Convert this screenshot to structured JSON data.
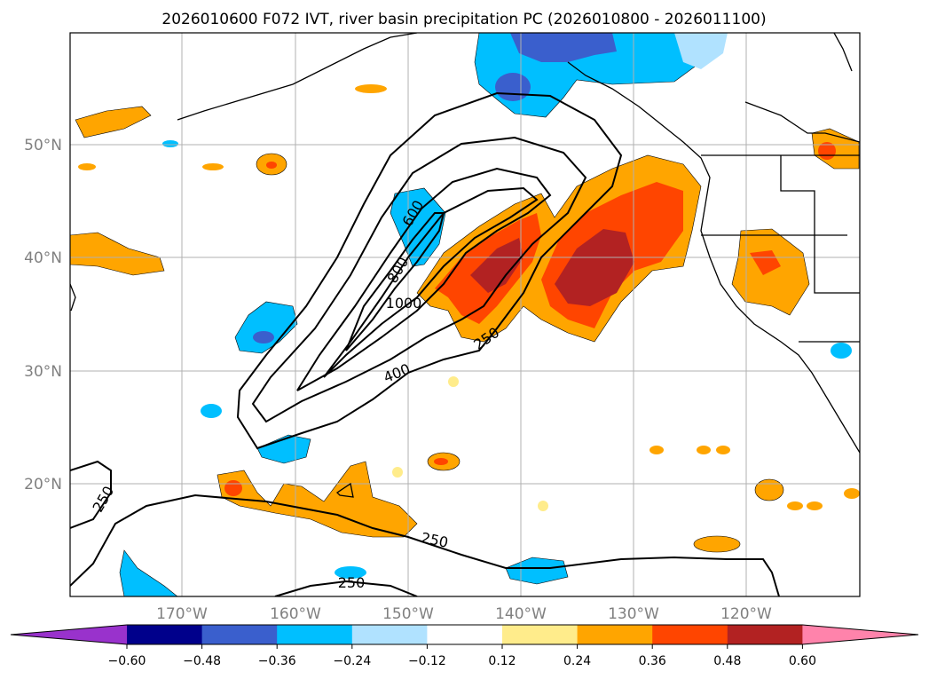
{
  "title": "2026010600 F072 IVT, river basin precipitation PC (2026010800 - 2026011100)",
  "map": {
    "lat_labels": [
      "50°N",
      "40°N",
      "30°N",
      "20°N"
    ],
    "lon_labels": [
      "170°W",
      "160°W",
      "150°W",
      "140°W",
      "130°W",
      "120°W"
    ],
    "contour_labels": [
      "600",
      "800",
      "1000",
      "250",
      "400",
      "250",
      "250",
      "250"
    ]
  },
  "colorbar": {
    "ticks": [
      "−0.60",
      "−0.48",
      "−0.36",
      "−0.24",
      "−0.12",
      "0.12",
      "0.24",
      "0.36",
      "0.48",
      "0.60"
    ],
    "colors": [
      "#9932cc",
      "#00008b",
      "#3a5fcd",
      "#00bfff",
      "#b0e2ff",
      "#ffffff",
      "#ffec8b",
      "#ffa500",
      "#ff4500",
      "#b22222",
      "#ff83ab"
    ]
  }
}
